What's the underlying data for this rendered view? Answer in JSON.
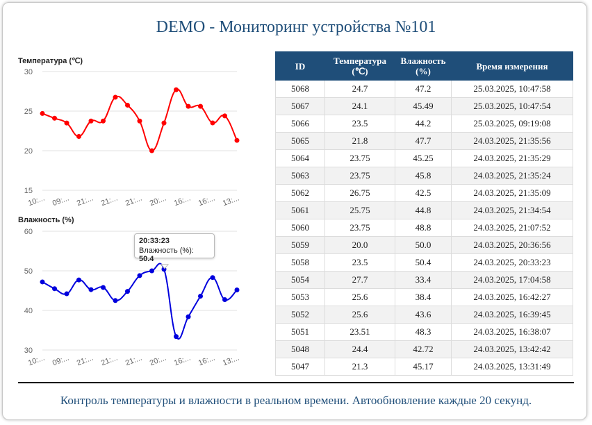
{
  "page": {
    "title": "DEMO - Мониторинг устройства №101"
  },
  "colors": {
    "temperature_line": "#ff0000",
    "humidity_line": "#0000dd",
    "header_bg": "#1f4e79",
    "title_text": "#1f4e79"
  },
  "chart_data": [
    {
      "type": "line",
      "title": "Температура (℃)",
      "categories": [
        "10:...",
        "09:...",
        "21:...",
        "21:...",
        "21:...",
        "20:...",
        "16:...",
        "16:...",
        "13:..."
      ],
      "x": [
        "25.03.2025, 10:47:58",
        "25.03.2025, 10:47:54",
        "25.03.2025, 09:19:08",
        "24.03.2025, 21:35:56",
        "24.03.2025, 21:35:29",
        "24.03.2025, 21:35:24",
        "24.03.2025, 21:35:09",
        "24.03.2025, 21:34:54",
        "24.03.2025, 21:07:52",
        "24.03.2025, 20:36:56",
        "24.03.2025, 20:33:23",
        "24.03.2025, 17:04:58",
        "24.03.2025, 16:42:27",
        "24.03.2025, 16:39:45",
        "24.03.2025, 16:38:07",
        "24.03.2025, 13:42:42",
        "24.03.2025, 13:31:49"
      ],
      "values": [
        24.7,
        24.1,
        23.5,
        21.8,
        23.75,
        23.75,
        26.75,
        25.75,
        23.75,
        20.0,
        23.5,
        27.7,
        25.6,
        25.6,
        23.51,
        24.4,
        21.3
      ],
      "yticks": [
        15,
        20,
        25,
        30
      ],
      "ylim": [
        15,
        30
      ]
    },
    {
      "type": "line",
      "title": "Влажность (%)",
      "categories": [
        "10:...",
        "09:...",
        "21:...",
        "21:...",
        "21:...",
        "20:...",
        "16:...",
        "16:...",
        "13:..."
      ],
      "x": [
        "25.03.2025, 10:47:58",
        "25.03.2025, 10:47:54",
        "25.03.2025, 09:19:08",
        "24.03.2025, 21:35:56",
        "24.03.2025, 21:35:29",
        "24.03.2025, 21:35:24",
        "24.03.2025, 21:35:09",
        "24.03.2025, 21:34:54",
        "24.03.2025, 21:07:52",
        "24.03.2025, 20:36:56",
        "24.03.2025, 20:33:23",
        "24.03.2025, 17:04:58",
        "24.03.2025, 16:42:27",
        "24.03.2025, 16:39:45",
        "24.03.2025, 16:38:07",
        "24.03.2025, 13:42:42",
        "24.03.2025, 13:31:49"
      ],
      "values": [
        47.2,
        45.49,
        44.2,
        47.7,
        45.25,
        45.8,
        42.5,
        44.8,
        48.8,
        50.0,
        50.4,
        33.4,
        38.4,
        43.6,
        48.3,
        42.72,
        45.17
      ],
      "yticks": [
        30,
        40,
        50,
        60
      ],
      "ylim": [
        30,
        60
      ],
      "tooltip": {
        "title": "20:33:23",
        "label": "Влажность (%):",
        "value": "50.4",
        "index": 10
      }
    }
  ],
  "table": {
    "headers": [
      {
        "line1": "ID",
        "line2": ""
      },
      {
        "line1": "Температура",
        "line2": "(℃)"
      },
      {
        "line1": "Влажность",
        "line2": "(%)"
      },
      {
        "line1": "Время измерения",
        "line2": ""
      }
    ],
    "rows": [
      [
        "5068",
        "24.7",
        "47.2",
        "25.03.2025, 10:47:58"
      ],
      [
        "5067",
        "24.1",
        "45.49",
        "25.03.2025, 10:47:54"
      ],
      [
        "5066",
        "23.5",
        "44.2",
        "25.03.2025, 09:19:08"
      ],
      [
        "5065",
        "21.8",
        "47.7",
        "24.03.2025, 21:35:56"
      ],
      [
        "5064",
        "23.75",
        "45.25",
        "24.03.2025, 21:35:29"
      ],
      [
        "5063",
        "23.75",
        "45.8",
        "24.03.2025, 21:35:24"
      ],
      [
        "5062",
        "26.75",
        "42.5",
        "24.03.2025, 21:35:09"
      ],
      [
        "5061",
        "25.75",
        "44.8",
        "24.03.2025, 21:34:54"
      ],
      [
        "5060",
        "23.75",
        "48.8",
        "24.03.2025, 21:07:52"
      ],
      [
        "5059",
        "20.0",
        "50.0",
        "24.03.2025, 20:36:56"
      ],
      [
        "5058",
        "23.5",
        "50.4",
        "24.03.2025, 20:33:23"
      ],
      [
        "5054",
        "27.7",
        "33.4",
        "24.03.2025, 17:04:58"
      ],
      [
        "5053",
        "25.6",
        "38.4",
        "24.03.2025, 16:42:27"
      ],
      [
        "5052",
        "25.6",
        "43.6",
        "24.03.2025, 16:39:45"
      ],
      [
        "5051",
        "23.51",
        "48.3",
        "24.03.2025, 16:38:07"
      ],
      [
        "5048",
        "24.4",
        "42.72",
        "24.03.2025, 13:42:42"
      ],
      [
        "5047",
        "21.3",
        "45.17",
        "24.03.2025, 13:31:49"
      ]
    ]
  },
  "footer": {
    "text": "Контроль температуры и влажности в реальном времени. Автообновление каждые 20 секунд."
  }
}
